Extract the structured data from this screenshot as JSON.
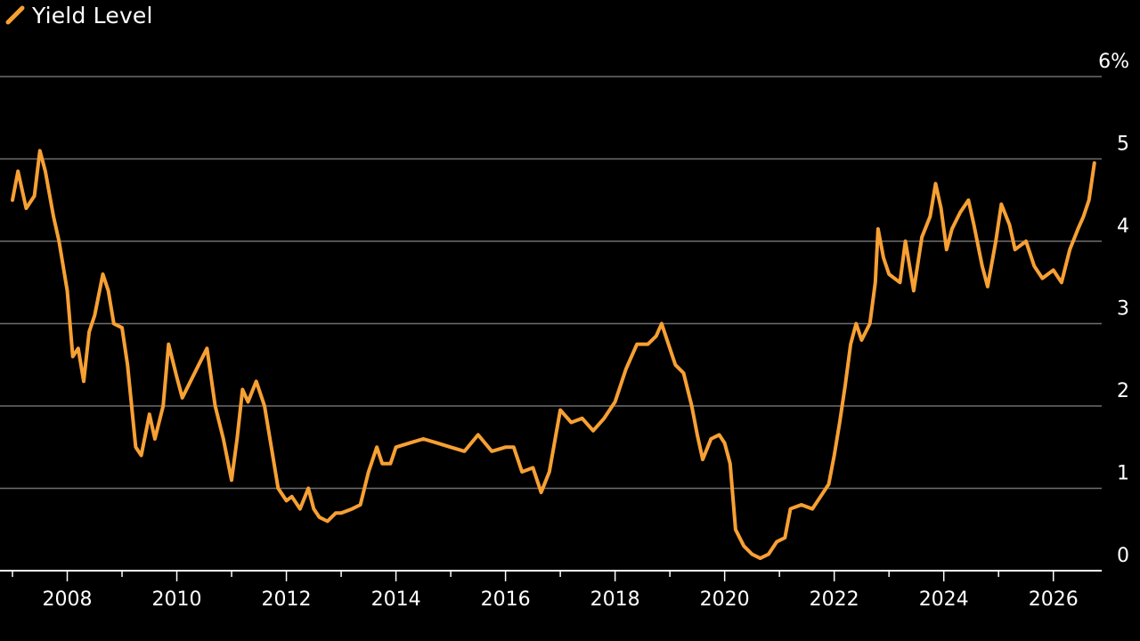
{
  "chart_data": {
    "type": "line",
    "legend": {
      "position": "top-left",
      "entries": [
        "Yield Level"
      ]
    },
    "series": [
      {
        "name": "Yield Level",
        "color": "#f7a033",
        "points": [
          [
            2007.0,
            4.5
          ],
          [
            2007.1,
            4.85
          ],
          [
            2007.25,
            4.4
          ],
          [
            2007.4,
            4.55
          ],
          [
            2007.5,
            5.1
          ],
          [
            2007.6,
            4.85
          ],
          [
            2007.75,
            4.3
          ],
          [
            2007.85,
            4.0
          ],
          [
            2008.0,
            3.4
          ],
          [
            2008.1,
            2.6
          ],
          [
            2008.2,
            2.7
          ],
          [
            2008.3,
            2.3
          ],
          [
            2008.4,
            2.9
          ],
          [
            2008.5,
            3.1
          ],
          [
            2008.65,
            3.6
          ],
          [
            2008.75,
            3.4
          ],
          [
            2008.85,
            3.0
          ],
          [
            2009.0,
            2.95
          ],
          [
            2009.1,
            2.5
          ],
          [
            2009.25,
            1.5
          ],
          [
            2009.35,
            1.4
          ],
          [
            2009.5,
            1.9
          ],
          [
            2009.6,
            1.6
          ],
          [
            2009.75,
            2.0
          ],
          [
            2009.85,
            2.75
          ],
          [
            2010.0,
            2.35
          ],
          [
            2010.1,
            2.1
          ],
          [
            2010.25,
            2.3
          ],
          [
            2010.4,
            2.5
          ],
          [
            2010.55,
            2.7
          ],
          [
            2010.7,
            2.0
          ],
          [
            2010.85,
            1.6
          ],
          [
            2011.0,
            1.1
          ],
          [
            2011.1,
            1.6
          ],
          [
            2011.2,
            2.2
          ],
          [
            2011.3,
            2.05
          ],
          [
            2011.45,
            2.3
          ],
          [
            2011.6,
            2.0
          ],
          [
            2011.75,
            1.4
          ],
          [
            2011.85,
            1.0
          ],
          [
            2012.0,
            0.85
          ],
          [
            2012.1,
            0.9
          ],
          [
            2012.25,
            0.75
          ],
          [
            2012.4,
            1.0
          ],
          [
            2012.5,
            0.75
          ],
          [
            2012.6,
            0.65
          ],
          [
            2012.75,
            0.6
          ],
          [
            2012.9,
            0.7
          ],
          [
            2013.0,
            0.7
          ],
          [
            2013.2,
            0.75
          ],
          [
            2013.35,
            0.8
          ],
          [
            2013.5,
            1.2
          ],
          [
            2013.65,
            1.5
          ],
          [
            2013.75,
            1.3
          ],
          [
            2013.9,
            1.3
          ],
          [
            2014.0,
            1.5
          ],
          [
            2014.25,
            1.55
          ],
          [
            2014.5,
            1.6
          ],
          [
            2014.75,
            1.55
          ],
          [
            2015.0,
            1.5
          ],
          [
            2015.25,
            1.45
          ],
          [
            2015.5,
            1.65
          ],
          [
            2015.75,
            1.45
          ],
          [
            2016.0,
            1.5
          ],
          [
            2016.15,
            1.5
          ],
          [
            2016.3,
            1.2
          ],
          [
            2016.5,
            1.25
          ],
          [
            2016.65,
            0.95
          ],
          [
            2016.8,
            1.2
          ],
          [
            2017.0,
            1.95
          ],
          [
            2017.2,
            1.8
          ],
          [
            2017.4,
            1.85
          ],
          [
            2017.6,
            1.7
          ],
          [
            2017.8,
            1.85
          ],
          [
            2018.0,
            2.05
          ],
          [
            2018.2,
            2.45
          ],
          [
            2018.4,
            2.75
          ],
          [
            2018.6,
            2.75
          ],
          [
            2018.75,
            2.85
          ],
          [
            2018.85,
            3.0
          ],
          [
            2019.0,
            2.7
          ],
          [
            2019.1,
            2.5
          ],
          [
            2019.25,
            2.4
          ],
          [
            2019.4,
            2.0
          ],
          [
            2019.5,
            1.65
          ],
          [
            2019.6,
            1.35
          ],
          [
            2019.75,
            1.6
          ],
          [
            2019.9,
            1.65
          ],
          [
            2020.0,
            1.55
          ],
          [
            2020.1,
            1.3
          ],
          [
            2020.2,
            0.5
          ],
          [
            2020.35,
            0.3
          ],
          [
            2020.5,
            0.2
          ],
          [
            2020.65,
            0.15
          ],
          [
            2020.8,
            0.2
          ],
          [
            2020.95,
            0.35
          ],
          [
            2021.1,
            0.4
          ],
          [
            2021.2,
            0.75
          ],
          [
            2021.4,
            0.8
          ],
          [
            2021.6,
            0.75
          ],
          [
            2021.75,
            0.9
          ],
          [
            2021.9,
            1.05
          ],
          [
            2022.0,
            1.4
          ],
          [
            2022.1,
            1.8
          ],
          [
            2022.2,
            2.25
          ],
          [
            2022.3,
            2.75
          ],
          [
            2022.4,
            3.0
          ],
          [
            2022.5,
            2.8
          ],
          [
            2022.65,
            3.0
          ],
          [
            2022.75,
            3.5
          ],
          [
            2022.8,
            4.15
          ],
          [
            2022.9,
            3.8
          ],
          [
            2023.0,
            3.6
          ],
          [
            2023.2,
            3.5
          ],
          [
            2023.3,
            4.0
          ],
          [
            2023.45,
            3.4
          ],
          [
            2023.6,
            4.05
          ],
          [
            2023.75,
            4.3
          ],
          [
            2023.85,
            4.7
          ],
          [
            2023.95,
            4.4
          ],
          [
            2024.05,
            3.9
          ],
          [
            2024.15,
            4.15
          ],
          [
            2024.3,
            4.35
          ],
          [
            2024.45,
            4.5
          ],
          [
            2024.55,
            4.2
          ],
          [
            2024.7,
            3.7
          ],
          [
            2024.8,
            3.45
          ],
          [
            2024.95,
            4.0
          ],
          [
            2025.05,
            4.45
          ],
          [
            2025.2,
            4.2
          ],
          [
            2025.3,
            3.9
          ],
          [
            2025.5,
            4.0
          ],
          [
            2025.65,
            3.7
          ],
          [
            2025.8,
            3.55
          ],
          [
            2026.0,
            3.65
          ],
          [
            2026.15,
            3.5
          ],
          [
            2026.3,
            3.9
          ],
          [
            2026.45,
            4.15
          ],
          [
            2026.55,
            4.3
          ],
          [
            2026.65,
            4.5
          ],
          [
            2026.75,
            4.95
          ]
        ]
      }
    ],
    "x_axis": {
      "range": [
        2007.0,
        2026.85
      ],
      "ticks": [
        2008,
        2010,
        2012,
        2014,
        2016,
        2018,
        2020,
        2022,
        2024,
        2026
      ],
      "tick_labels": [
        "2008",
        "2010",
        "2012",
        "2014",
        "2016",
        "2018",
        "2020",
        "2022",
        "2024",
        "2026"
      ]
    },
    "y_axis": {
      "range": [
        0,
        6
      ],
      "ticks": [
        0,
        1,
        2,
        3,
        4,
        5,
        6
      ],
      "tick_labels": [
        "0",
        "1",
        "2",
        "3",
        "4",
        "5",
        "6%"
      ],
      "position": "right"
    },
    "grid": true
  },
  "colors": {
    "background": "#000000",
    "line": "#f7a033",
    "grid": "#6e6e6e",
    "axis": "#ffffff",
    "text": "#ffffff"
  }
}
